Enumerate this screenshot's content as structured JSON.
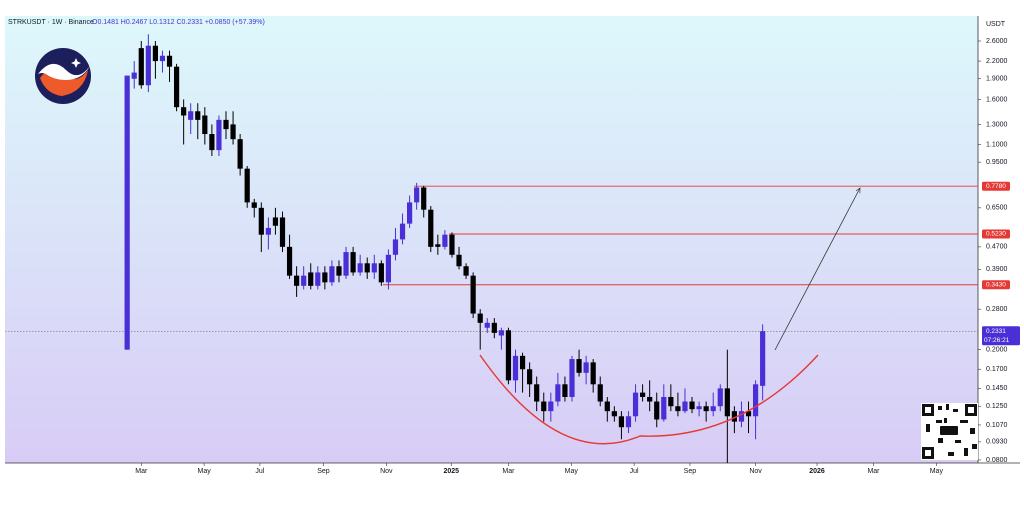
{
  "header": {
    "symbol": "STRKUSDT · 1W · Binance",
    "ohlc": "O0.1481 H0.2467 L0.1312 C0.2331 +0.0850 (+57.39%)"
  },
  "chart_data": {
    "type": "candlestick",
    "currency": "USDT",
    "log_scale": true,
    "grid": false,
    "up_color": "#4a2fd6",
    "down_color": "#000000",
    "open": [
      0.2,
      1.9,
      2.45,
      1.8,
      2.5,
      2.2,
      2.3,
      2.1,
      1.5,
      1.35,
      1.45,
      1.4,
      1.2,
      1.05,
      1.35,
      1.3,
      1.15,
      0.9,
      0.68,
      0.65,
      0.52,
      0.6,
      0.6,
      0.47,
      0.37,
      0.34,
      0.38,
      0.34,
      0.38,
      0.35,
      0.4,
      0.37,
      0.45,
      0.38,
      0.41,
      0.38,
      0.41,
      0.35,
      0.44,
      0.5,
      0.57,
      0.68,
      0.77,
      0.64,
      0.48,
      0.47,
      0.52,
      0.44,
      0.4,
      0.37,
      0.27,
      0.24,
      0.25,
      0.225,
      0.235,
      0.155,
      0.19,
      0.17,
      0.15,
      0.13,
      0.12,
      0.13,
      0.15,
      0.135,
      0.185,
      0.165,
      0.18,
      0.15,
      0.13,
      0.12,
      0.115,
      0.105,
      0.115,
      0.14,
      0.135,
      0.13,
      0.112,
      0.135,
      0.125,
      0.12,
      0.13,
      0.122,
      0.125,
      0.12,
      0.125,
      0.145,
      0.12,
      0.11,
      0.12,
      0.115,
      0.1481
    ],
    "high": [
      1.95,
      2.2,
      2.6,
      2.75,
      2.6,
      2.4,
      2.4,
      2.15,
      1.6,
      1.55,
      1.55,
      1.5,
      1.3,
      1.4,
      1.45,
      1.45,
      1.2,
      0.92,
      0.7,
      0.68,
      0.6,
      0.65,
      0.63,
      0.52,
      0.4,
      0.4,
      0.41,
      0.4,
      0.4,
      0.42,
      0.42,
      0.47,
      0.47,
      0.44,
      0.43,
      0.44,
      0.42,
      0.46,
      0.55,
      0.62,
      0.72,
      0.8,
      0.78,
      0.66,
      0.52,
      0.54,
      0.53,
      0.47,
      0.41,
      0.38,
      0.28,
      0.26,
      0.26,
      0.24,
      0.24,
      0.2,
      0.195,
      0.18,
      0.16,
      0.14,
      0.14,
      0.165,
      0.16,
      0.19,
      0.2,
      0.19,
      0.185,
      0.16,
      0.135,
      0.125,
      0.12,
      0.12,
      0.15,
      0.15,
      0.155,
      0.14,
      0.15,
      0.15,
      0.14,
      0.145,
      0.135,
      0.13,
      0.13,
      0.14,
      0.15,
      0.2,
      0.125,
      0.13,
      0.13,
      0.155,
      0.2467
    ],
    "low": [
      0.2,
      1.75,
      1.75,
      1.7,
      1.9,
      2.0,
      1.85,
      1.45,
      1.1,
      1.2,
      1.15,
      1.1,
      1.0,
      1.0,
      1.15,
      1.1,
      0.85,
      0.65,
      0.6,
      0.45,
      0.46,
      0.52,
      0.45,
      0.36,
      0.31,
      0.33,
      0.33,
      0.33,
      0.33,
      0.34,
      0.35,
      0.36,
      0.37,
      0.37,
      0.36,
      0.36,
      0.34,
      0.33,
      0.42,
      0.48,
      0.55,
      0.64,
      0.6,
      0.45,
      0.44,
      0.46,
      0.43,
      0.39,
      0.36,
      0.26,
      0.2,
      0.23,
      0.22,
      0.2,
      0.15,
      0.14,
      0.14,
      0.135,
      0.12,
      0.11,
      0.11,
      0.125,
      0.13,
      0.13,
      0.16,
      0.15,
      0.14,
      0.125,
      0.11,
      0.11,
      0.095,
      0.1,
      0.11,
      0.13,
      0.12,
      0.105,
      0.11,
      0.12,
      0.115,
      0.118,
      0.118,
      0.115,
      0.11,
      0.115,
      0.12,
      0.07,
      0.1,
      0.105,
      0.1,
      0.095,
      0.1312
    ],
    "close": [
      1.95,
      2.0,
      1.8,
      2.5,
      2.2,
      2.3,
      2.1,
      1.5,
      1.4,
      1.45,
      1.35,
      1.2,
      1.05,
      1.35,
      1.25,
      1.15,
      0.9,
      0.68,
      0.65,
      0.52,
      0.55,
      0.56,
      0.47,
      0.37,
      0.34,
      0.37,
      0.34,
      0.38,
      0.35,
      0.4,
      0.37,
      0.45,
      0.38,
      0.41,
      0.38,
      0.41,
      0.35,
      0.44,
      0.5,
      0.57,
      0.68,
      0.77,
      0.64,
      0.47,
      0.47,
      0.52,
      0.44,
      0.4,
      0.37,
      0.27,
      0.25,
      0.25,
      0.23,
      0.235,
      0.155,
      0.19,
      0.17,
      0.15,
      0.13,
      0.12,
      0.13,
      0.15,
      0.135,
      0.185,
      0.165,
      0.18,
      0.15,
      0.13,
      0.12,
      0.115,
      0.105,
      0.115,
      0.14,
      0.135,
      0.13,
      0.112,
      0.135,
      0.125,
      0.12,
      0.13,
      0.122,
      0.125,
      0.12,
      0.125,
      0.145,
      0.115,
      0.11,
      0.12,
      0.115,
      0.15,
      0.2331
    ],
    "ylim": [
      0.078,
      3.2
    ],
    "yticks": [
      {
        "value": 2.6,
        "label": "2.6000"
      },
      {
        "value": 2.2,
        "label": "2.2000"
      },
      {
        "value": 1.9,
        "label": "1.9000"
      },
      {
        "value": 1.6,
        "label": "1.6000"
      },
      {
        "value": 1.3,
        "label": "1.3000"
      },
      {
        "value": 1.1,
        "label": "1.1000"
      },
      {
        "value": 0.95,
        "label": "0.9500"
      },
      {
        "value": 0.65,
        "label": "0.6500"
      },
      {
        "value": 0.47,
        "label": "0.4700"
      },
      {
        "value": 0.39,
        "label": "0.3900"
      },
      {
        "value": 0.28,
        "label": "0.2800"
      },
      {
        "value": 0.2,
        "label": "0.2000"
      },
      {
        "value": 0.17,
        "label": "0.1700"
      },
      {
        "value": 0.145,
        "label": "0.1450"
      },
      {
        "value": 0.125,
        "label": "0.1250"
      },
      {
        "value": 0.107,
        "label": "0.1070"
      },
      {
        "value": 0.093,
        "label": "0.0930"
      },
      {
        "value": 0.08,
        "label": "0.0800"
      }
    ],
    "xlim": [
      -17.3,
      120.5
    ],
    "xticks": [
      {
        "value": 2.0,
        "label": "Mar"
      },
      {
        "value": 10.9,
        "label": "May"
      },
      {
        "value": 18.8,
        "label": "Jul"
      },
      {
        "value": 27.8,
        "label": "Sep"
      },
      {
        "value": 36.7,
        "label": "Nov"
      },
      {
        "value": 45.9,
        "label": "2025"
      },
      {
        "value": 54.0,
        "label": "Mar"
      },
      {
        "value": 62.9,
        "label": "May"
      },
      {
        "value": 71.8,
        "label": "Jul"
      },
      {
        "value": 79.7,
        "label": "Sep"
      },
      {
        "value": 89.0,
        "label": "Nov"
      },
      {
        "value": 97.7,
        "label": "2026"
      },
      {
        "value": 105.7,
        "label": "Mar"
      },
      {
        "value": 114.6,
        "label": "May"
      }
    ],
    "levels": [
      {
        "value": 0.778,
        "label": "0.7780"
      },
      {
        "value": 0.523,
        "label": "0.5230"
      },
      {
        "value": 0.343,
        "label": "0.3430"
      }
    ],
    "level_color": "#e53935",
    "last_price": {
      "value": 0.2331,
      "label": "0.2331",
      "countdown": "07:26:21"
    }
  }
}
